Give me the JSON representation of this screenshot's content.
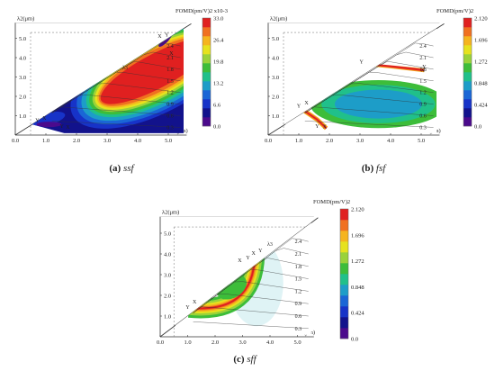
{
  "chart_data": [
    {
      "type": "heatmap",
      "caption_letter": "(a)",
      "caption_name": "ssf",
      "xlabel": "λ1(μm)",
      "ylabel": "λ2(μm)",
      "colorbar_title": "FOMD(pm/V)2 x10-3",
      "xlim": [
        0,
        5.6
      ],
      "ylim": [
        0,
        5.8
      ],
      "x_ticks": [
        "0.0",
        "1.0",
        "2.0",
        "3.0",
        "4.0",
        "5.0"
      ],
      "y_ticks": [
        "1.0",
        "2.0",
        "3.0",
        "4.0",
        "5.0"
      ],
      "colorbar_ticks": [
        "33.0",
        "26.4",
        "19.8",
        "13.2",
        "6.6",
        "0.0"
      ],
      "contour_levels": [
        "2.4",
        "2.1",
        "1.8",
        "1.5",
        "1.2",
        "0.9",
        "0.6",
        "0.3"
      ],
      "lambda3_label": "λ3",
      "markers": [
        {
          "label": "Y",
          "x": 0.72,
          "y": 0.68
        },
        {
          "label": "X",
          "x": 0.95,
          "y": 0.78
        },
        {
          "label": "Y",
          "x": 1.52,
          "y": 0.38
        },
        {
          "label": "X",
          "x": 1.72,
          "y": 0.32
        },
        {
          "label": "X",
          "x": 4.72,
          "y": 5.02
        },
        {
          "label": "Y",
          "x": 4.95,
          "y": 5.1
        },
        {
          "label": "X",
          "x": 5.1,
          "y": 4.15
        }
      ]
    },
    {
      "type": "heatmap",
      "caption_letter": "(b)",
      "caption_name": "fsf",
      "xlabel": "λ1(μm)",
      "ylabel": "λ2(μm)",
      "colorbar_title": "FOMD(pm/V)2",
      "xlim": [
        0,
        5.6
      ],
      "ylim": [
        0,
        5.8
      ],
      "x_ticks": [
        "0.0",
        "1.0",
        "2.0",
        "3.0",
        "4.0",
        "5.0"
      ],
      "y_ticks": [
        "1.0",
        "2.0",
        "3.0",
        "4.0",
        "5.0"
      ],
      "colorbar_ticks": [
        "2.120",
        "1.696",
        "1.272",
        "0.848",
        "0.424",
        "0.0"
      ],
      "contour_levels": [
        "2.4",
        "2.1",
        "1.8",
        "1.5",
        "1.2",
        "0.9",
        "0.6",
        "0.3"
      ],
      "markers": [
        {
          "label": "Y",
          "x": 1.0,
          "y": 1.42
        },
        {
          "label": "X",
          "x": 1.25,
          "y": 1.58
        },
        {
          "label": "Y",
          "x": 1.6,
          "y": 0.38
        },
        {
          "label": "X",
          "x": 1.85,
          "y": 0.35
        },
        {
          "label": "Y",
          "x": 3.05,
          "y": 3.7
        },
        {
          "label": "X",
          "x": 5.05,
          "y": 3.28
        },
        {
          "label": "Y",
          "x": 5.1,
          "y": 3.45
        }
      ]
    },
    {
      "type": "heatmap",
      "caption_letter": "(c)",
      "caption_name": "sff",
      "xlabel": "λ1(μm)",
      "ylabel": "λ2(μm)",
      "colorbar_title": "FOMD(pm/V)2",
      "xlim": [
        0,
        5.6
      ],
      "ylim": [
        0,
        5.8
      ],
      "x_ticks": [
        "0.0",
        "1.0",
        "2.0",
        "3.0",
        "4.0",
        "5.0"
      ],
      "y_ticks": [
        "1.0",
        "2.0",
        "3.0",
        "4.0",
        "5.0"
      ],
      "colorbar_ticks": [
        "2.120",
        "1.696",
        "1.272",
        "0.848",
        "0.424",
        "0.0"
      ],
      "contour_levels": [
        "2.4",
        "2.1",
        "1.8",
        "1.5",
        "1.2",
        "0.9",
        "0.6",
        "0.3"
      ],
      "lambda3_label": "λ3",
      "markers": [
        {
          "label": "Y",
          "x": 1.0,
          "y": 1.35
        },
        {
          "label": "X",
          "x": 1.25,
          "y": 1.6
        },
        {
          "label": "X",
          "x": 2.9,
          "y": 3.6
        },
        {
          "label": "Y",
          "x": 3.2,
          "y": 3.75
        },
        {
          "label": "X",
          "x": 3.4,
          "y": 3.95
        },
        {
          "label": "Y",
          "x": 3.65,
          "y": 4.08
        }
      ]
    }
  ],
  "colors": {
    "colormap": [
      "#4b0a8c",
      "#12128c",
      "#1733c8",
      "#1a66d6",
      "#1d9dc8",
      "#20c08a",
      "#3dbd3a",
      "#9ad23a",
      "#e6e21e",
      "#f5b41e",
      "#f07020",
      "#e02020",
      "#b8141c"
    ],
    "axis": "#333333",
    "guide": "#888888",
    "contour": "#333333"
  }
}
